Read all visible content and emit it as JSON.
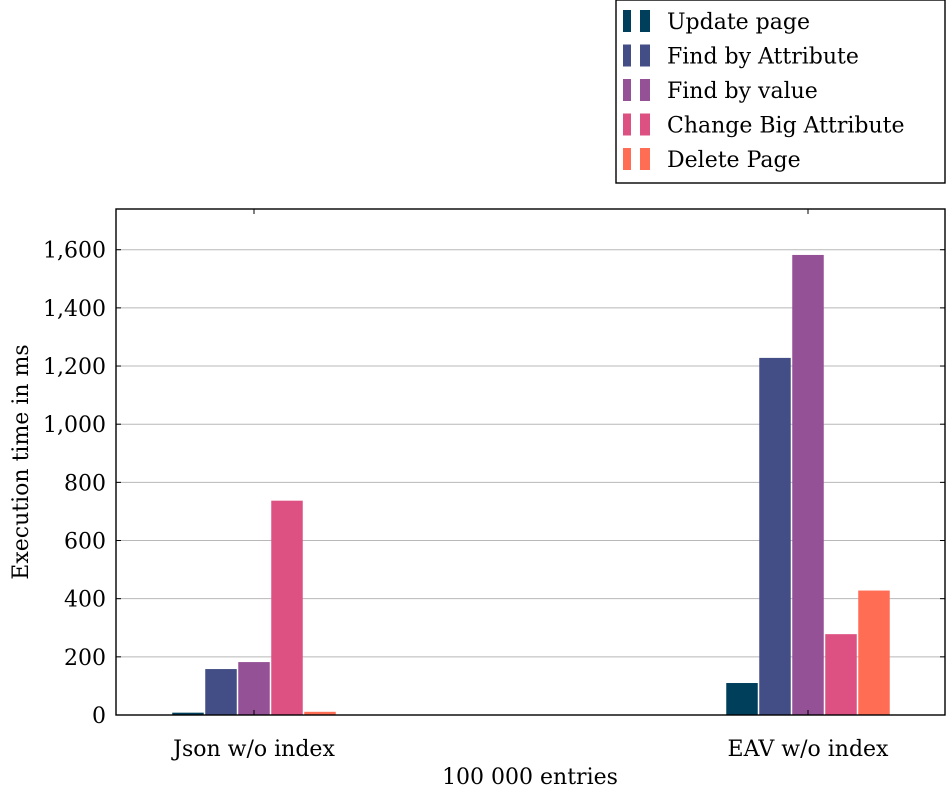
{
  "chart_data": {
    "type": "bar",
    "categories": [
      "Json w/o index",
      "EAV w/o index"
    ],
    "xlabel": "100 000 entries",
    "ylabel": "Execution time in ms",
    "ylim": [
      0,
      1740
    ],
    "yticks": [
      0,
      200,
      400,
      600,
      800,
      1000,
      1200,
      1400,
      1600
    ],
    "ytick_labels": [
      "0",
      "200",
      "400",
      "600",
      "800",
      "1,000",
      "1,200",
      "1,400",
      "1,600"
    ],
    "grid": "horizontal",
    "legend_position": "top-right, outside plot",
    "series": [
      {
        "name": "Update page",
        "color": "#003f5c",
        "values": [
          8,
          110
        ]
      },
      {
        "name": "Find by Attribute",
        "color": "#444e86",
        "values": [
          158,
          1228
        ]
      },
      {
        "name": "Find by value",
        "color": "#955196",
        "values": [
          182,
          1582
        ]
      },
      {
        "name": "Change Big Attribute",
        "color": "#dd5182",
        "values": [
          737,
          278
        ]
      },
      {
        "name": "Delete Page",
        "color": "#ff6e54",
        "values": [
          11,
          428
        ]
      }
    ]
  }
}
